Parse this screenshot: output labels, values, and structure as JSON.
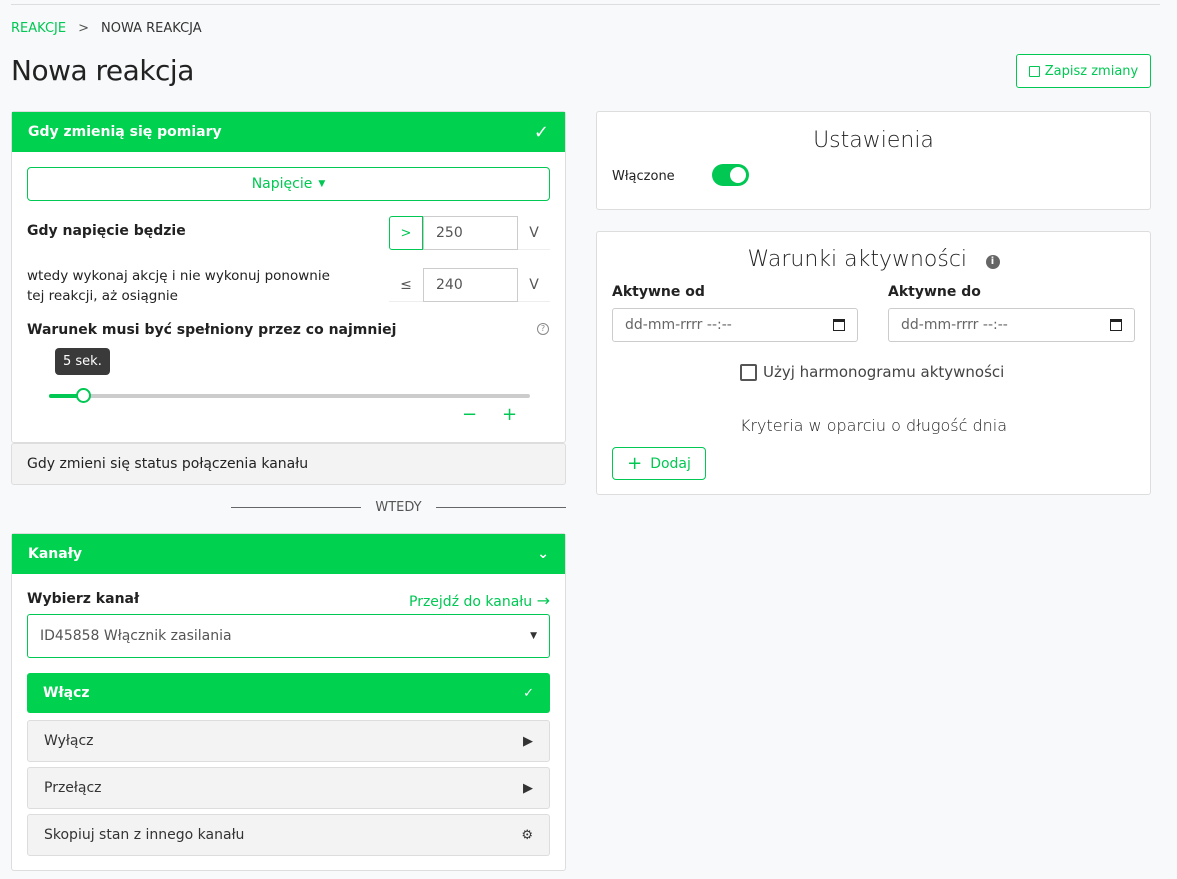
{
  "breadcrumb": {
    "parent": "REAKCJE",
    "separator": ">",
    "current": "NOWA REAKCJA"
  },
  "page_title": "Nowa reakcja",
  "save_label": "Zapisz zmiany",
  "trigger": {
    "header": "Gdy zmienią się pomiary",
    "measure_dropdown": "Napięcie",
    "condition_label": "Gdy napięcie będzie",
    "condition_operator": ">",
    "condition_value": "250",
    "unit": "V",
    "reset_label": "wtedy wykonaj akcję i nie wykonuj ponownie tej reakcji, aż osiągnie",
    "reset_operator": "≤",
    "reset_value": "240",
    "duration_label": "Warunek musi być spełniony przez co najmniej",
    "duration_tooltip": "5 sek.",
    "duration_fraction": 0.07,
    "minus": "−",
    "plus": "+"
  },
  "trigger_alt": "Gdy zmieni się status połączenia kanału",
  "divider": "WTEDY",
  "channels": {
    "header": "Kanały",
    "select_label": "Wybierz kanał",
    "goto_link": "Przejdź do kanału",
    "selected_channel": "ID45858 Włącznik zasilania",
    "actions": [
      {
        "label": "Włącz",
        "icon": "check-icon",
        "active": true
      },
      {
        "label": "Wyłącz",
        "icon": "play-icon",
        "active": false
      },
      {
        "label": "Przełącz",
        "icon": "play-icon",
        "active": false
      },
      {
        "label": "Skopiuj stan z innego kanału",
        "icon": "gear-icon",
        "active": false
      }
    ]
  },
  "settings": {
    "title": "Ustawienia",
    "enabled_label": "Włączone",
    "enabled": true
  },
  "activity": {
    "title": "Warunki aktywności",
    "from_label": "Aktywne od",
    "to_label": "Aktywne do",
    "from_placeholder": "dd-mm-rrrr --:--",
    "to_placeholder": "dd-mm-rrrr --:--",
    "schedule_label": "Użyj harmonogramu aktywności",
    "daylength_label": "Kryteria w oparciu o długość dnia",
    "add_label": "Dodaj"
  },
  "colors": {
    "accent": "#00d14f"
  }
}
